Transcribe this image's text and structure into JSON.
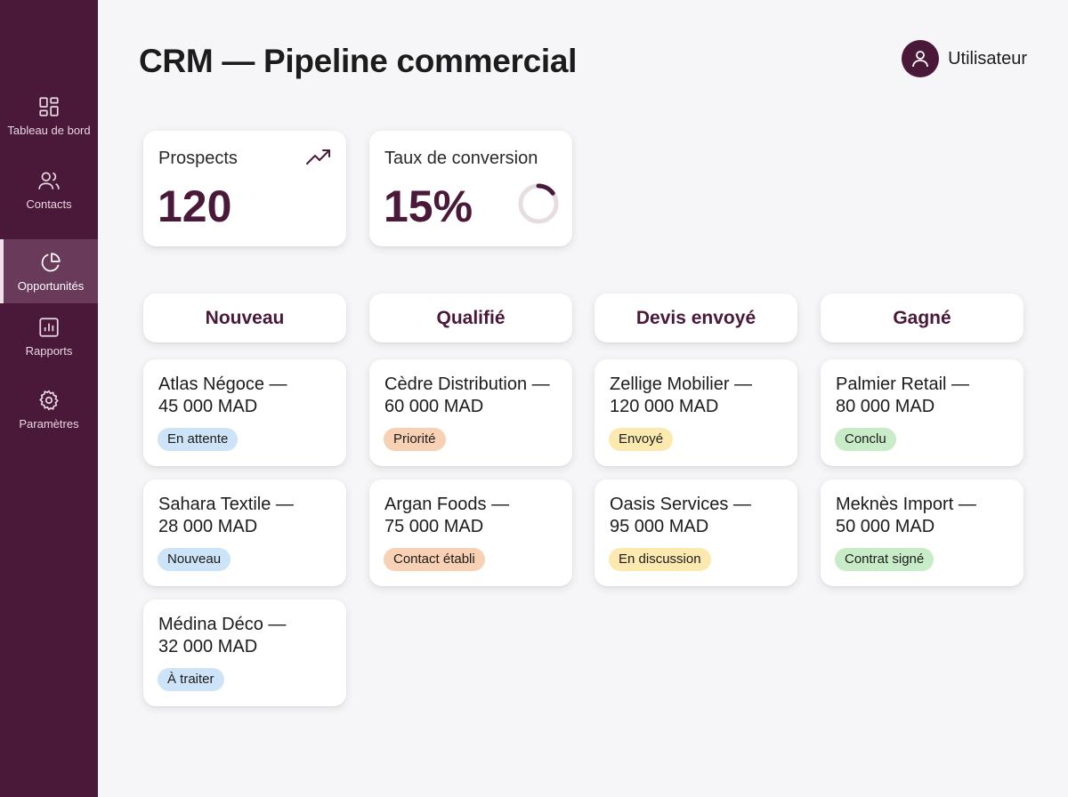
{
  "sidebar": {
    "items": [
      {
        "label": "Tableau de bord",
        "icon": "dashboard-icon"
      },
      {
        "label": "Contacts",
        "icon": "contacts-icon"
      },
      {
        "label": "Opportunités",
        "icon": "pie-chart-icon",
        "active": true
      },
      {
        "label": "Rapports",
        "icon": "report-icon"
      },
      {
        "label": "Paramètres",
        "icon": "gear-icon"
      }
    ]
  },
  "header": {
    "title": "CRM — Pipeline commercial",
    "user": "Utilisateur"
  },
  "kpis": {
    "prospects": {
      "label": "Prospects",
      "value": "120"
    },
    "conversion": {
      "label": "Taux de conversion",
      "value": "15%",
      "fraction": 0.15
    }
  },
  "pipeline": {
    "columns": [
      {
        "title": "Nouveau",
        "deals": [
          {
            "line1": "Atlas Négoce —",
            "line2": "45 000 MAD",
            "status": "En attente",
            "color": "blue"
          },
          {
            "line1": "Sahara Textile —",
            "line2": "28 000 MAD",
            "status": "Nouveau",
            "color": "blue"
          },
          {
            "line1": "Médina Déco —",
            "line2": "32 000 MAD",
            "status": "À traiter",
            "color": "blue"
          }
        ]
      },
      {
        "title": "Qualifié",
        "deals": [
          {
            "line1": "Cèdre Distribution —",
            "line2": "60 000 MAD",
            "status": "Priorité",
            "color": "orange"
          },
          {
            "line1": "Argan Foods —",
            "line2": "75 000 MAD",
            "status": "Contact établi",
            "color": "orange"
          }
        ]
      },
      {
        "title": "Devis envoyé",
        "deals": [
          {
            "line1": "Zellige Mobilier —",
            "line2": "120 000 MAD",
            "status": "Envoyé",
            "color": "yellow"
          },
          {
            "line1": "Oasis Services —",
            "line2": "95 000 MAD",
            "status": "En discussion",
            "color": "yellow"
          }
        ]
      },
      {
        "title": "Gagné",
        "deals": [
          {
            "line1": "Palmier Retail —",
            "line2": "80 000 MAD",
            "status": "Conclu",
            "color": "green"
          },
          {
            "line1": "Meknès Import —",
            "line2": "50 000 MAD",
            "status": "Contrat signé",
            "color": "green"
          }
        ]
      }
    ]
  },
  "colors": {
    "brand": "#4a1838",
    "sidebar_active": "#6a3a5a",
    "badge_blue": "#cde3f7",
    "badge_orange": "#f8d0b4",
    "badge_yellow": "#fbe9b0",
    "badge_green": "#c9ecc8"
  }
}
